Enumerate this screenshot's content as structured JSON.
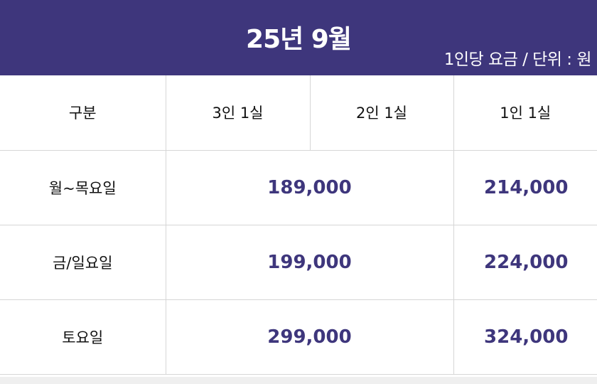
{
  "header": {
    "title": "25년 9월",
    "unit_note": "1인당 요금 / 단위 : 원",
    "background_color": "#3e367c"
  },
  "table": {
    "columns": [
      "구분",
      "3인 1실",
      "2인 1실",
      "1인 1실"
    ],
    "rows": [
      {
        "label": "월~목요일",
        "shared_price": "189,000",
        "single_price": "214,000"
      },
      {
        "label": "금/일요일",
        "shared_price": "199,000",
        "single_price": "224,000"
      },
      {
        "label": "토요일",
        "shared_price": "299,000",
        "single_price": "324,000"
      }
    ],
    "price_color": "#3e367c"
  }
}
